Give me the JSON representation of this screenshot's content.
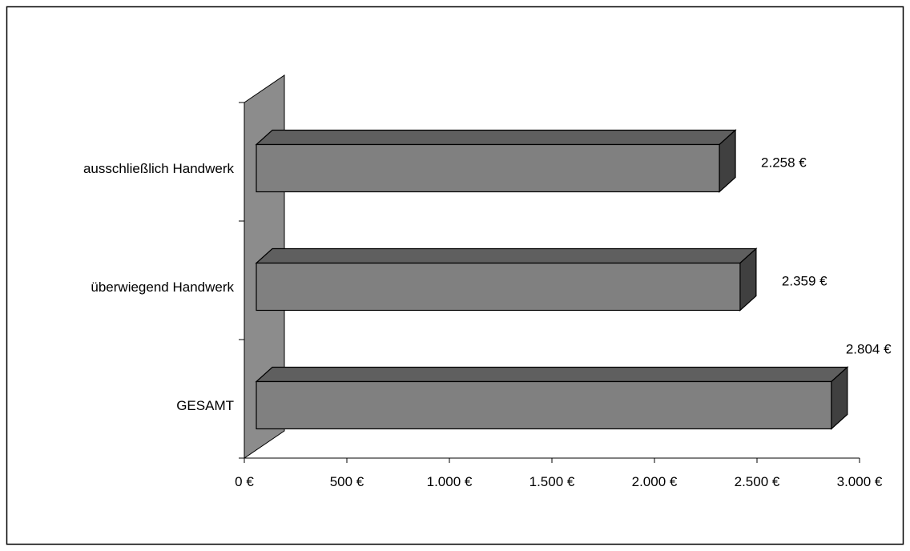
{
  "chart_data": {
    "type": "bar",
    "orientation": "horizontal",
    "style": "3d",
    "categories": [
      "ausschließlich Handwerk",
      "überwiegend Handwerk",
      "GESAMT"
    ],
    "series": [
      {
        "values": [
          2258,
          2359,
          2804
        ],
        "labels": [
          "2.258 €",
          "2.359 €",
          "2.804 €"
        ]
      }
    ],
    "xlim": [
      0,
      3000
    ],
    "xticks": [
      0,
      500,
      1000,
      1500,
      2000,
      2500,
      3000
    ],
    "xtick_labels": [
      "0 €",
      "500 €",
      "1.000 €",
      "1.500 €",
      "2.000 €",
      "2.500 €",
      "3.000 €"
    ],
    "grid": false,
    "legend": "none",
    "colors": {
      "bar_front": "#808080",
      "bar_top": "#5f5f5f",
      "bar_side": "#404040",
      "wall": "#8c8c8c",
      "outline": "#000000"
    }
  }
}
